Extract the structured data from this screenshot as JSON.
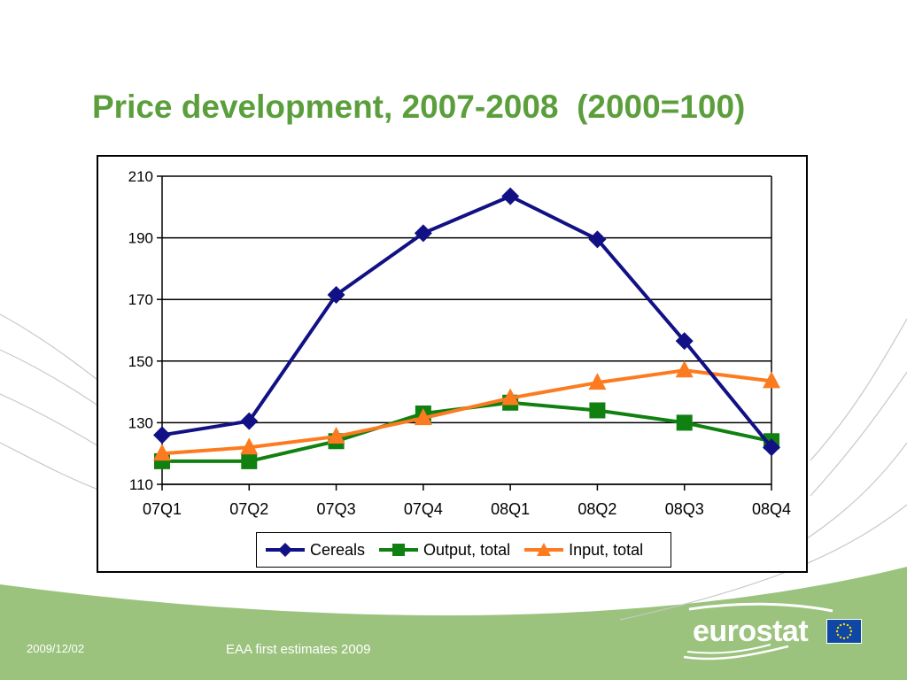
{
  "slide": {
    "title": "Price development, 2007-2008  (2000=100)",
    "footer_date": "2009/12/02",
    "footer_text": "EAA first estimates 2009",
    "logo_text": "eurostat"
  },
  "colors": {
    "title": "#5b9e3c",
    "footer_band": "#9bc37e",
    "cereals": "#111185",
    "output_total": "#108010",
    "input_total": "#fd7b20",
    "eu_flag": "#0e47a5",
    "eu_stars": "#ffd700"
  },
  "chart_data": {
    "type": "line",
    "categories": [
      "07Q1",
      "07Q2",
      "07Q3",
      "07Q4",
      "08Q1",
      "08Q2",
      "08Q3",
      "08Q4"
    ],
    "ylim": [
      110,
      210
    ],
    "yticks": [
      110,
      130,
      150,
      170,
      190,
      210
    ],
    "grid": "horizontal",
    "legend_position": "bottom",
    "title": "",
    "xlabel": "",
    "ylabel": "",
    "series": [
      {
        "name": "Cereals",
        "marker": "diamond",
        "color": "#111185",
        "values": [
          126,
          130.5,
          171.5,
          191.5,
          203.5,
          189.5,
          156.5,
          122
        ]
      },
      {
        "name": "Output, total",
        "marker": "square",
        "color": "#108010",
        "values": [
          117.5,
          117.5,
          124,
          133,
          136.5,
          134,
          130,
          124
        ]
      },
      {
        "name": "Input, total",
        "marker": "triangle",
        "color": "#fd7b20",
        "values": [
          120,
          122,
          125.5,
          131.5,
          138,
          143,
          147,
          143.5
        ]
      }
    ]
  }
}
